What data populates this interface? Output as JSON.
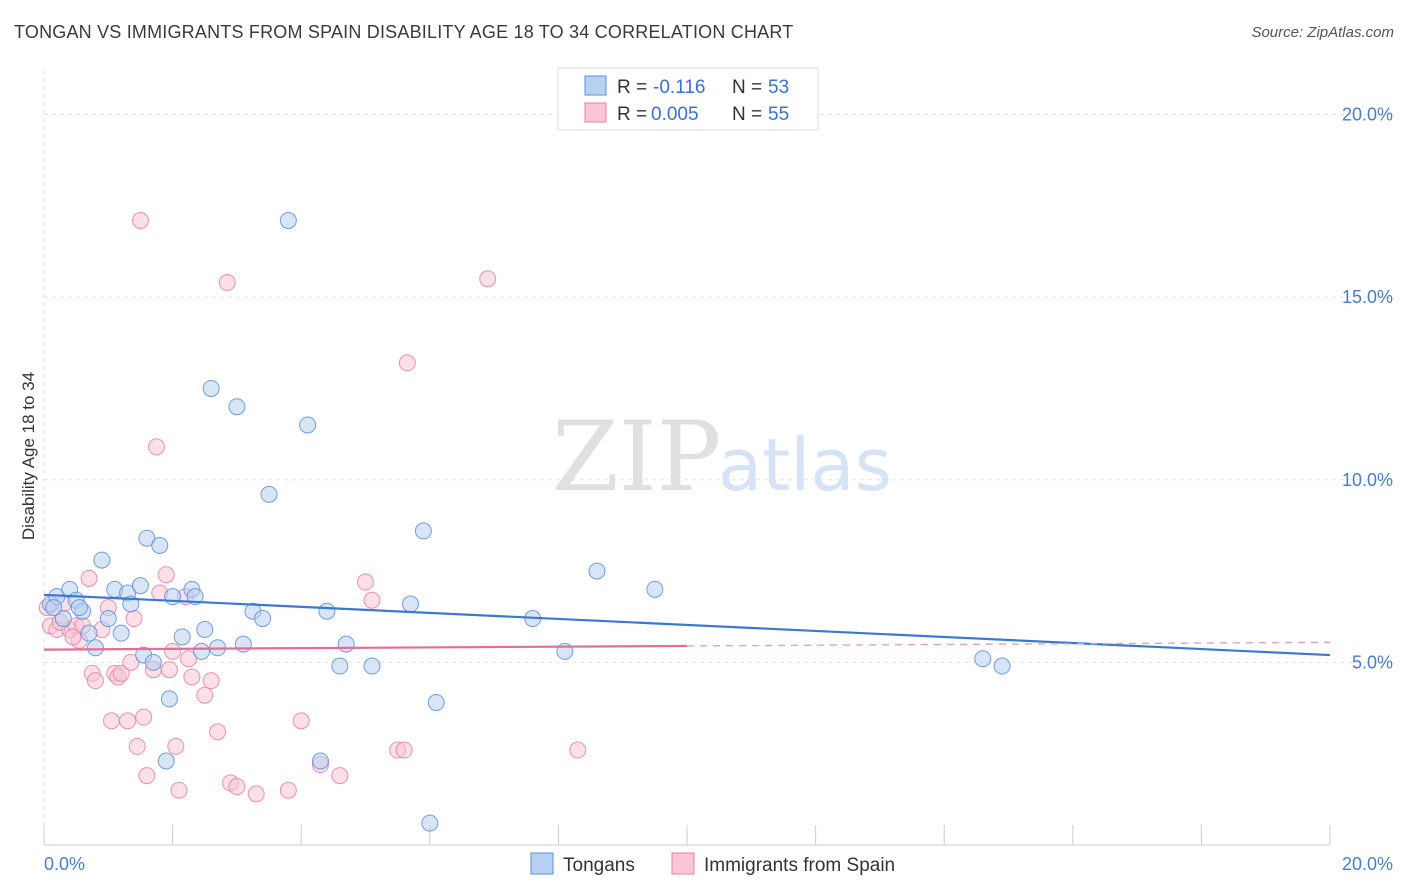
{
  "header": {
    "title": "TONGAN VS IMMIGRANTS FROM SPAIN DISABILITY AGE 18 TO 34 CORRELATION CHART",
    "source": "Source: ZipAtlas.com"
  },
  "watermark": {
    "zip": "ZIP",
    "atlas": "atlas"
  },
  "legend": {
    "rows": [
      {
        "r_label": "R =",
        "r_value": "-0.116",
        "n_label": "N =",
        "n_value": "53",
        "color": "#5b8fd9"
      },
      {
        "r_label": "R =",
        "r_value": "0.005",
        "n_label": "N =",
        "n_value": "55",
        "color": "#e97fa3"
      }
    ]
  },
  "chart_data": {
    "type": "scatter",
    "title": "TONGAN VS IMMIGRANTS FROM SPAIN DISABILITY AGE 18 TO 34 CORRELATION CHART",
    "xlabel": "",
    "ylabel": "Disability Age 18 to 34",
    "xlim": [
      0,
      20
    ],
    "ylim": [
      0,
      21
    ],
    "x_tick_labels": [
      "0.0%",
      "20.0%"
    ],
    "y_ticks": [
      5,
      10,
      15,
      20
    ],
    "y_tick_labels": [
      "5.0%",
      "10.0%",
      "15.0%",
      "20.0%"
    ],
    "grid": true,
    "series": [
      {
        "name": "Tongans",
        "color": "#5b8fd9",
        "fill": "#b8d0f1",
        "points": [
          [
            0.1,
            6.6
          ],
          [
            0.2,
            6.8
          ],
          [
            0.3,
            6.2
          ],
          [
            0.4,
            7.0
          ],
          [
            0.5,
            6.7
          ],
          [
            0.6,
            6.4
          ],
          [
            0.7,
            5.8
          ],
          [
            0.8,
            5.4
          ],
          [
            0.9,
            7.8
          ],
          [
            1.0,
            6.2
          ],
          [
            1.1,
            7.0
          ],
          [
            1.2,
            5.8
          ],
          [
            1.3,
            6.9
          ],
          [
            1.35,
            6.6
          ],
          [
            1.5,
            7.1
          ],
          [
            1.55,
            5.2
          ],
          [
            1.6,
            8.4
          ],
          [
            1.7,
            5.0
          ],
          [
            1.8,
            8.2
          ],
          [
            1.95,
            4.0
          ],
          [
            2.0,
            6.8
          ],
          [
            2.15,
            5.7
          ],
          [
            2.3,
            7.0
          ],
          [
            2.35,
            6.8
          ],
          [
            2.45,
            5.3
          ],
          [
            2.5,
            5.9
          ],
          [
            2.6,
            12.5
          ],
          [
            2.7,
            5.4
          ],
          [
            3.0,
            12.0
          ],
          [
            3.1,
            5.5
          ],
          [
            3.25,
            6.4
          ],
          [
            3.4,
            6.2
          ],
          [
            3.5,
            9.6
          ],
          [
            3.8,
            17.1
          ],
          [
            4.1,
            11.5
          ],
          [
            4.3,
            2.3
          ],
          [
            4.4,
            6.4
          ],
          [
            4.6,
            4.9
          ],
          [
            4.7,
            5.5
          ],
          [
            5.1,
            4.9
          ],
          [
            5.7,
            6.6
          ],
          [
            5.9,
            8.6
          ],
          [
            6.1,
            3.9
          ],
          [
            6.0,
            0.6
          ],
          [
            7.6,
            6.2
          ],
          [
            8.1,
            5.3
          ],
          [
            8.6,
            7.5
          ],
          [
            9.5,
            7.0
          ],
          [
            14.6,
            5.1
          ],
          [
            14.9,
            4.9
          ],
          [
            1.9,
            2.3
          ],
          [
            0.15,
            6.5
          ],
          [
            0.55,
            6.5
          ]
        ]
      },
      {
        "name": "Immigrants from Spain",
        "color": "#e97fa3",
        "fill": "#f8c6d6",
        "points": [
          [
            0.05,
            6.5
          ],
          [
            0.1,
            6.0
          ],
          [
            0.2,
            5.9
          ],
          [
            0.3,
            6.6
          ],
          [
            0.4,
            5.9
          ],
          [
            0.5,
            6.0
          ],
          [
            0.55,
            5.6
          ],
          [
            0.6,
            6.0
          ],
          [
            0.7,
            7.3
          ],
          [
            0.75,
            4.7
          ],
          [
            0.8,
            4.5
          ],
          [
            0.9,
            5.9
          ],
          [
            1.0,
            6.5
          ],
          [
            1.05,
            3.4
          ],
          [
            1.1,
            4.7
          ],
          [
            1.15,
            4.6
          ],
          [
            1.2,
            4.7
          ],
          [
            1.3,
            3.4
          ],
          [
            1.35,
            5.0
          ],
          [
            1.4,
            6.2
          ],
          [
            1.45,
            2.7
          ],
          [
            1.55,
            3.5
          ],
          [
            1.6,
            1.9
          ],
          [
            1.7,
            4.8
          ],
          [
            1.75,
            10.9
          ],
          [
            1.8,
            6.9
          ],
          [
            1.9,
            7.4
          ],
          [
            1.95,
            4.8
          ],
          [
            2.0,
            5.3
          ],
          [
            2.05,
            2.7
          ],
          [
            2.1,
            1.5
          ],
          [
            2.2,
            6.8
          ],
          [
            2.25,
            5.1
          ],
          [
            2.3,
            4.6
          ],
          [
            2.5,
            4.1
          ],
          [
            2.6,
            4.5
          ],
          [
            2.7,
            3.1
          ],
          [
            2.85,
            15.4
          ],
          [
            2.9,
            1.7
          ],
          [
            3.0,
            1.6
          ],
          [
            3.3,
            1.4
          ],
          [
            3.8,
            1.5
          ],
          [
            4.0,
            3.4
          ],
          [
            4.3,
            2.2
          ],
          [
            4.6,
            1.9
          ],
          [
            5.0,
            7.2
          ],
          [
            5.1,
            6.7
          ],
          [
            5.5,
            2.6
          ],
          [
            5.6,
            2.6
          ],
          [
            5.65,
            13.2
          ],
          [
            6.9,
            15.5
          ],
          [
            8.3,
            2.6
          ],
          [
            1.5,
            17.1
          ],
          [
            0.25,
            6.1
          ],
          [
            0.45,
            5.7
          ]
        ]
      }
    ],
    "trend_lines": [
      {
        "series": "Tongans",
        "x": [
          0,
          20
        ],
        "y": [
          6.85,
          5.2
        ]
      },
      {
        "series": "Immigrants from Spain",
        "x": [
          0,
          10
        ],
        "y": [
          5.35,
          5.45
        ],
        "dashed_extension_x": [
          10,
          20
        ],
        "dashed_extension_y": [
          5.45,
          5.55
        ]
      }
    ]
  },
  "bottom_legend": [
    {
      "label": "Tongans",
      "color": "#5b8fd9",
      "fill": "#b8d0f1"
    },
    {
      "label": "Immigrants from Spain",
      "color": "#e97fa3",
      "fill": "#f8c6d6"
    }
  ]
}
